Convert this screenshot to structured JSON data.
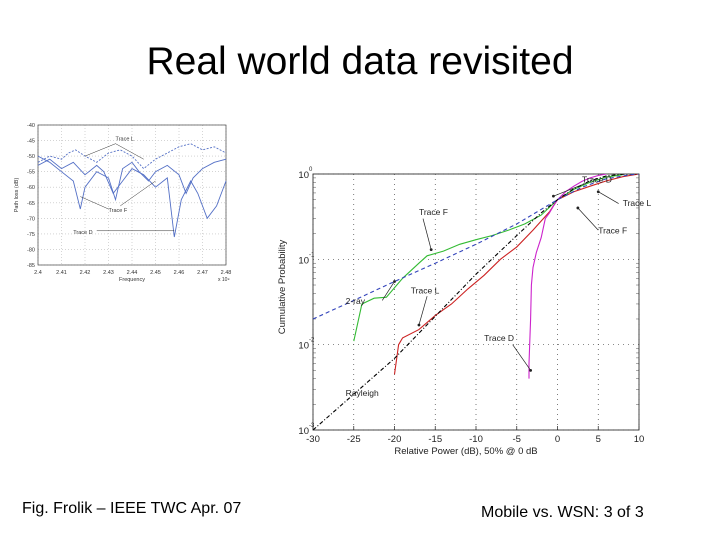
{
  "slide": {
    "title": "Real world data revisited",
    "caption_left": "Fig. Frolik – IEEE TWC Apr. 07",
    "caption_right": "Mobile vs. WSN: 3 of 3"
  },
  "chart_data": [
    {
      "type": "line",
      "title": "",
      "xlabel": "Frequency",
      "ylabel": "Path loss (dB)",
      "x_multiplier_label": "x 10⁹",
      "xlim": [
        2.4,
        2.48
      ],
      "ylim": [
        -85,
        -40
      ],
      "x_ticks": [
        2.4,
        2.41,
        2.42,
        2.43,
        2.44,
        2.45,
        2.46,
        2.47,
        2.48
      ],
      "x_tick_labels": [
        "2.4",
        "2.41",
        "2.42",
        "2.43",
        "2.44",
        "2.45",
        "2.46",
        "2.47",
        "2.48"
      ],
      "y_ticks": [
        -40,
        -45,
        -50,
        -55,
        -60,
        -65,
        -70,
        -75,
        -80,
        -85
      ],
      "grid": true,
      "colors": {
        "line": "#5470c6"
      },
      "annotations": [
        {
          "text": "Trace L",
          "x": 2.433,
          "y": -45
        },
        {
          "text": "Trace F",
          "x": 2.43,
          "y": -68
        },
        {
          "text": "Trace D",
          "x": 2.415,
          "y": -75
        }
      ],
      "series": [
        {
          "x": [
            2.4,
            2.405,
            2.41,
            2.413,
            2.416,
            2.42,
            2.425,
            2.43,
            2.435,
            2.44,
            2.445,
            2.45,
            2.455,
            2.46,
            2.465,
            2.47,
            2.475,
            2.48
          ],
          "values": [
            -52,
            -50,
            -51,
            -49,
            -48,
            -50,
            -52,
            -49,
            -48,
            -50,
            -54,
            -51,
            -49,
            -47,
            -46,
            -48,
            -47,
            -49
          ]
        },
        {
          "x": [
            2.4,
            2.405,
            2.41,
            2.415,
            2.418,
            2.42,
            2.425,
            2.43,
            2.433,
            2.436,
            2.44,
            2.443,
            2.447,
            2.45,
            2.455,
            2.46,
            2.463,
            2.466,
            2.47,
            2.475,
            2.48
          ],
          "values": [
            -50,
            -52,
            -55,
            -58,
            -67,
            -60,
            -55,
            -57,
            -64,
            -54,
            -52,
            -55,
            -58,
            -55,
            -53,
            -56,
            -62,
            -57,
            -54,
            -52,
            -51
          ]
        },
        {
          "x": [
            2.4,
            2.405,
            2.41,
            2.415,
            2.42,
            2.425,
            2.428,
            2.432,
            2.436,
            2.44,
            2.445,
            2.45,
            2.455,
            2.458,
            2.461,
            2.465,
            2.468,
            2.472,
            2.476,
            2.48
          ],
          "values": [
            -53,
            -51,
            -54,
            -52,
            -56,
            -53,
            -55,
            -62,
            -58,
            -54,
            -56,
            -60,
            -57,
            -76,
            -64,
            -58,
            -62,
            -70,
            -66,
            -58
          ]
        }
      ]
    },
    {
      "type": "line",
      "title": "",
      "xlabel": "Relative Power (dB), 50% @ 0 dB",
      "ylabel": "Cumulative Probability",
      "xlim": [
        -30,
        10
      ],
      "ylim": [
        0.001,
        1
      ],
      "log_y": true,
      "x_ticks": [
        -30,
        -25,
        -20,
        -15,
        -10,
        -5,
        0,
        5,
        10
      ],
      "x_tick_labels": [
        "-30",
        "-25",
        "-20",
        "-15",
        "-10",
        "-5",
        "0",
        "5",
        "10"
      ],
      "y_ticks": [
        0.001,
        0.01,
        0.1,
        1
      ],
      "y_tick_labels": [
        "10",
        "10",
        "10",
        "10"
      ],
      "y_tick_exponents": [
        "-3",
        "-2",
        "-1",
        "0"
      ],
      "grid": true,
      "colors": {
        "trace_f": "#33bb33",
        "trace_l": "#cc2222",
        "trace_d": "#cc22cc",
        "rayleigh": "#000000",
        "two_ray": "#3344bb"
      },
      "annotations": [
        {
          "text": "Trace D",
          "x": 3,
          "y": 0.8
        },
        {
          "text": "Trace L",
          "x": 8,
          "y": 0.42
        },
        {
          "text": "Trace F",
          "x": 5,
          "y": 0.2
        },
        {
          "text": "Trace F",
          "x": -17,
          "y": 0.33
        },
        {
          "text": "2-ray",
          "x": -26,
          "y": 0.03
        },
        {
          "text": "Trace L",
          "x": -18,
          "y": 0.04
        },
        {
          "text": "Trace D",
          "x": -9,
          "y": 0.011
        },
        {
          "text": "Rayleigh",
          "x": -26,
          "y": 0.0025
        }
      ],
      "series": [
        {
          "name": "Trace F",
          "x": [
            -25,
            -24,
            -22.5,
            -21,
            -19,
            -17,
            -16,
            -14,
            -12,
            -10,
            -8,
            -6,
            -4,
            -2,
            0,
            2,
            4,
            6,
            8
          ],
          "values": [
            0.011,
            0.03,
            0.035,
            0.036,
            0.06,
            0.09,
            0.11,
            0.125,
            0.15,
            0.17,
            0.19,
            0.22,
            0.26,
            0.33,
            0.5,
            0.66,
            0.8,
            0.92,
            0.98
          ]
        },
        {
          "name": "Trace L",
          "x": [
            -20,
            -19.5,
            -19,
            -17,
            -15,
            -13,
            -11,
            -9,
            -7,
            -5,
            -3,
            -1,
            0,
            2,
            4,
            6,
            8,
            10
          ],
          "values": [
            0.0045,
            0.01,
            0.012,
            0.015,
            0.022,
            0.03,
            0.045,
            0.065,
            0.1,
            0.14,
            0.22,
            0.36,
            0.5,
            0.62,
            0.72,
            0.83,
            0.93,
            1.0
          ]
        },
        {
          "name": "Trace D",
          "x": [
            -3.5,
            -3.5,
            -3.3,
            -3.2,
            -3.0,
            -2.6,
            -2.0,
            -1.5,
            -1.0,
            -0.5,
            0,
            1,
            2,
            3,
            4,
            5,
            6
          ],
          "values": [
            0.004,
            0.006,
            0.02,
            0.05,
            0.08,
            0.12,
            0.18,
            0.3,
            0.35,
            0.42,
            0.5,
            0.62,
            0.72,
            0.82,
            0.9,
            0.96,
            1.0
          ]
        },
        {
          "name": "Rayleigh",
          "x": [
            -30,
            -20,
            -10,
            -5,
            -2,
            0,
            2,
            4,
            6,
            8,
            10
          ],
          "values": [
            0.00069,
            0.0069,
            0.067,
            0.19,
            0.35,
            0.5,
            0.67,
            0.83,
            0.95,
            0.994,
            1.0
          ]
        },
        {
          "name": "2-ray",
          "x": [
            -30,
            -25,
            -20,
            -15,
            -10,
            -5,
            0,
            3,
            6,
            9,
            10
          ],
          "values": [
            0.02,
            0.033,
            0.055,
            0.09,
            0.15,
            0.26,
            0.5,
            0.7,
            0.88,
            0.98,
            1.0
          ]
        }
      ]
    }
  ]
}
